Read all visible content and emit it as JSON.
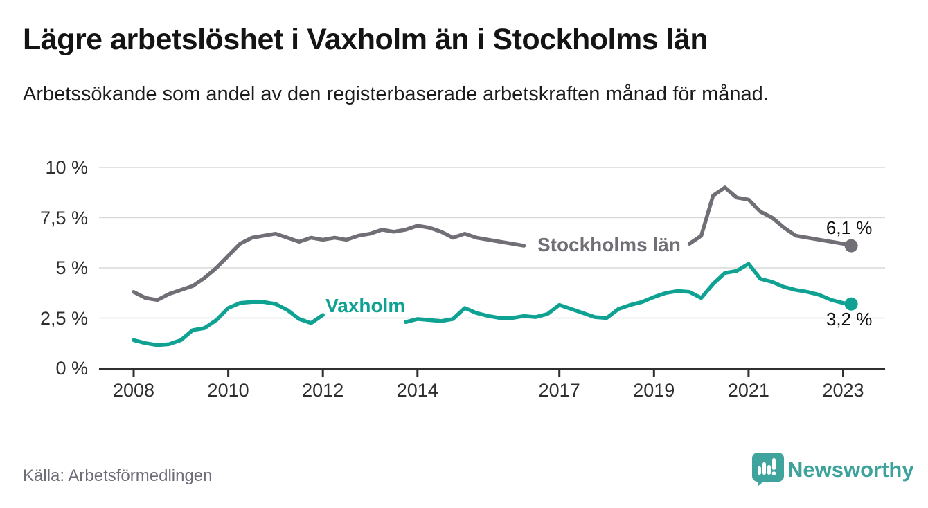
{
  "title": "Lägre arbetslöshet i Vaxholm än i Stockholms län",
  "subtitle": "Arbetssökande som andel av den registerbaserade arbetskraften månad för månad.",
  "source": "Källa: Arbetsförmedlingen",
  "branding": {
    "name": "Newsworthy",
    "logo_icon": "speech-bubble-bar-chart-icon",
    "brand_color": "#3fa39e"
  },
  "chart_data": {
    "type": "line",
    "title": "Lägre arbetslöshet i Vaxholm än i Stockholms län",
    "subtitle": "Arbetssökande som andel av den registerbaserade arbetskraften månad för månad.",
    "xlabel": "",
    "ylabel": "",
    "ylim": [
      0,
      10
    ],
    "xlim": [
      2008,
      2023.9
    ],
    "grid": "horizontal",
    "legend": "inline-labels",
    "grid_color": "#d9d9d9",
    "axis_color": "#2f2f31",
    "x": [
      2008.0,
      2008.25,
      2008.5,
      2008.75,
      2009.0,
      2009.25,
      2009.5,
      2009.75,
      2010.0,
      2010.25,
      2010.5,
      2010.75,
      2011.0,
      2011.25,
      2011.5,
      2011.75,
      2012.0,
      2012.25,
      2012.5,
      2012.75,
      2013.0,
      2013.25,
      2013.5,
      2013.75,
      2014.0,
      2014.25,
      2014.5,
      2014.75,
      2015.0,
      2015.25,
      2015.5,
      2015.75,
      2016.0,
      2016.25,
      2016.5,
      2016.75,
      2017.0,
      2017.25,
      2017.5,
      2017.75,
      2018.0,
      2018.25,
      2018.5,
      2018.75,
      2019.0,
      2019.25,
      2019.5,
      2019.75,
      2020.0,
      2020.25,
      2020.5,
      2020.75,
      2021.0,
      2021.25,
      2021.5,
      2021.75,
      2022.0,
      2022.25,
      2022.5,
      2022.75,
      2023.0,
      2023.17
    ],
    "y_ticks": [
      {
        "v": 0,
        "label": "0 %"
      },
      {
        "v": 2.5,
        "label": "2,5 %"
      },
      {
        "v": 5,
        "label": "5 %"
      },
      {
        "v": 7.5,
        "label": "7,5 %"
      },
      {
        "v": 10,
        "label": "10 %"
      }
    ],
    "x_ticks": [
      {
        "t": 2008,
        "label": "2008"
      },
      {
        "t": 2010,
        "label": "2010"
      },
      {
        "t": 2012,
        "label": "2012"
      },
      {
        "t": 2014,
        "label": "2014"
      },
      {
        "t": 2017,
        "label": "2017"
      },
      {
        "t": 2019,
        "label": "2019"
      },
      {
        "t": 2021,
        "label": "2021"
      },
      {
        "t": 2023,
        "label": "2023"
      }
    ],
    "series": [
      {
        "name": "Stockholms län",
        "color": "#716e75",
        "end_label": "6,1 %",
        "end_value": 6.1,
        "label_pos": {
          "t": 2018.05,
          "v": 6.15
        },
        "label_gap": [
          2016.35,
          2019.7
        ],
        "values": [
          3.8,
          3.5,
          3.4,
          3.7,
          3.9,
          4.1,
          4.5,
          5.0,
          5.6,
          6.2,
          6.5,
          6.6,
          6.7,
          6.5,
          6.3,
          6.5,
          6.4,
          6.5,
          6.4,
          6.6,
          6.7,
          6.9,
          6.8,
          6.9,
          7.1,
          7.0,
          6.8,
          6.5,
          6.7,
          6.5,
          6.4,
          6.3,
          6.2,
          6.1,
          6.2,
          6.1,
          6.0,
          6.0,
          6.1,
          6.0,
          6.0,
          5.9,
          6.0,
          5.9,
          6.0,
          6.0,
          6.1,
          6.2,
          6.6,
          8.6,
          9.0,
          8.5,
          8.4,
          7.8,
          7.5,
          7.0,
          6.6,
          6.5,
          6.4,
          6.3,
          6.2,
          6.1
        ]
      },
      {
        "name": "Vaxholm",
        "color": "#0fa293",
        "end_label": "3,2 %",
        "end_value": 3.2,
        "label_pos": {
          "t": 2012.9,
          "v": 3.1
        },
        "label_gap": [
          2012.15,
          2013.65
        ],
        "values": [
          1.4,
          1.25,
          1.15,
          1.2,
          1.4,
          1.9,
          2.0,
          2.4,
          3.0,
          3.25,
          3.3,
          3.3,
          3.2,
          2.9,
          2.45,
          2.25,
          2.65,
          2.85,
          2.95,
          2.9,
          2.9,
          2.6,
          2.3,
          2.3,
          2.45,
          2.4,
          2.35,
          2.45,
          3.0,
          2.75,
          2.6,
          2.5,
          2.5,
          2.6,
          2.55,
          2.7,
          3.15,
          2.95,
          2.75,
          2.55,
          2.5,
          2.95,
          3.15,
          3.3,
          3.55,
          3.75,
          3.85,
          3.8,
          3.5,
          4.2,
          4.75,
          4.85,
          5.2,
          4.45,
          4.3,
          4.05,
          3.9,
          3.8,
          3.65,
          3.4,
          3.25,
          3.2
        ]
      }
    ]
  }
}
